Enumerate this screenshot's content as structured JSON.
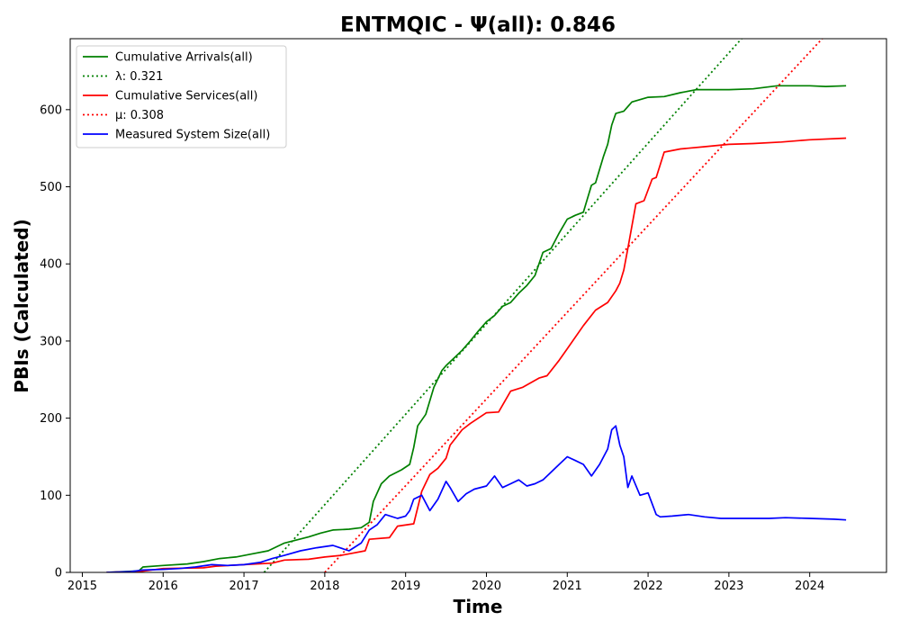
{
  "chart_data": {
    "type": "line",
    "title": "ENTMQIC -  Ψ(all): 0.846",
    "xlabel": "Time",
    "ylabel": "PBIs (Calculated)",
    "xlim": [
      2014.85,
      2024.95
    ],
    "ylim": [
      0,
      692
    ],
    "x_ticks": [
      2015,
      2016,
      2017,
      2018,
      2019,
      2020,
      2021,
      2022,
      2023,
      2024
    ],
    "y_ticks": [
      0,
      100,
      200,
      300,
      400,
      500,
      600
    ],
    "grid": false,
    "legend_position": "top-left",
    "series": [
      {
        "name": "Cumulative Arrivals(all)",
        "color": "#008000",
        "style": "solid",
        "x": [
          2015.3,
          2015.7,
          2015.75,
          2016.0,
          2016.3,
          2016.5,
          2016.7,
          2016.9,
          2017.1,
          2017.3,
          2017.5,
          2017.8,
          2017.95,
          2018.1,
          2018.3,
          2018.45,
          2018.55,
          2018.6,
          2018.7,
          2018.8,
          2018.95,
          2019.05,
          2019.1,
          2019.15,
          2019.25,
          2019.35,
          2019.45,
          2019.5,
          2019.6,
          2019.7,
          2019.8,
          2019.9,
          2020.0,
          2020.1,
          2020.2,
          2020.3,
          2020.4,
          2020.5,
          2020.6,
          2020.7,
          2020.8,
          2020.9,
          2021.0,
          2021.1,
          2021.2,
          2021.3,
          2021.35,
          2021.45,
          2021.5,
          2021.55,
          2021.6,
          2021.7,
          2021.8,
          2022.0,
          2022.2,
          2022.4,
          2022.6,
          2022.8,
          2023.0,
          2023.3,
          2023.6,
          2023.8,
          2024.0,
          2024.2,
          2024.45
        ],
        "values": [
          0,
          2,
          7,
          9,
          11,
          14,
          18,
          20,
          24,
          28,
          38,
          46,
          51,
          55,
          56,
          58,
          65,
          92,
          115,
          125,
          133,
          140,
          162,
          190,
          205,
          240,
          262,
          268,
          278,
          288,
          300,
          313,
          325,
          333,
          345,
          350,
          362,
          372,
          385,
          415,
          420,
          440,
          458,
          463,
          467,
          502,
          505,
          540,
          555,
          580,
          595,
          598,
          610,
          616,
          617,
          622,
          626,
          626,
          626,
          627,
          631,
          631,
          631,
          630,
          631
        ]
      },
      {
        "name": "λ: 0.321",
        "color": "#008000",
        "style": "dotted",
        "x": [
          2017.25,
          2023.2
        ],
        "values": [
          0,
          697
        ]
      },
      {
        "name": "Cumulative Services(all)",
        "color": "#ff0000",
        "style": "solid",
        "x": [
          2015.3,
          2015.7,
          2016.0,
          2016.5,
          2016.65,
          2017.0,
          2017.35,
          2017.5,
          2017.8,
          2018.0,
          2018.2,
          2018.5,
          2018.55,
          2018.8,
          2018.9,
          2019.1,
          2019.2,
          2019.3,
          2019.4,
          2019.5,
          2019.55,
          2019.7,
          2019.8,
          2019.9,
          2020.0,
          2020.15,
          2020.3,
          2020.45,
          2020.65,
          2020.75,
          2020.9,
          2021.0,
          2021.2,
          2021.35,
          2021.5,
          2021.6,
          2021.65,
          2021.7,
          2021.75,
          2021.85,
          2021.95,
          2022.05,
          2022.1,
          2022.2,
          2022.4,
          2022.7,
          2023.0,
          2023.3,
          2023.65,
          2024.0,
          2024.45
        ],
        "values": [
          0,
          1,
          5,
          6,
          8,
          10,
          12,
          16,
          17,
          20,
          22,
          28,
          43,
          45,
          60,
          63,
          105,
          127,
          135,
          148,
          165,
          185,
          193,
          200,
          207,
          208,
          235,
          240,
          252,
          255,
          275,
          290,
          320,
          340,
          350,
          365,
          375,
          392,
          420,
          478,
          482,
          510,
          512,
          545,
          549,
          552,
          555,
          556,
          558,
          561,
          563
        ]
      },
      {
        "name": "μ: 0.308",
        "color": "#ff0000",
        "style": "dotted",
        "x": [
          2018.0,
          2024.2
        ],
        "values": [
          0,
          697
        ]
      },
      {
        "name": "Measured System Size(all)",
        "color": "#0000ff",
        "style": "solid",
        "x": [
          2015.3,
          2015.6,
          2015.75,
          2016.0,
          2016.2,
          2016.4,
          2016.6,
          2016.8,
          2017.0,
          2017.2,
          2017.35,
          2017.5,
          2017.7,
          2017.9,
          2018.1,
          2018.3,
          2018.45,
          2018.55,
          2018.65,
          2018.75,
          2018.9,
          2019.0,
          2019.05,
          2019.1,
          2019.2,
          2019.3,
          2019.4,
          2019.5,
          2019.55,
          2019.65,
          2019.75,
          2019.85,
          2020.0,
          2020.1,
          2020.2,
          2020.3,
          2020.4,
          2020.5,
          2020.6,
          2020.7,
          2020.8,
          2020.9,
          2021.0,
          2021.1,
          2021.2,
          2021.3,
          2021.4,
          2021.5,
          2021.55,
          2021.6,
          2021.65,
          2021.7,
          2021.75,
          2021.8,
          2021.9,
          2022.0,
          2022.1,
          2022.15,
          2022.3,
          2022.5,
          2022.7,
          2022.9,
          2023.2,
          2023.5,
          2023.7,
          2024.0,
          2024.3,
          2024.45
        ],
        "values": [
          0,
          1,
          3,
          4,
          5,
          7,
          10,
          9,
          10,
          13,
          18,
          22,
          28,
          32,
          35,
          28,
          38,
          55,
          62,
          75,
          70,
          73,
          80,
          95,
          100,
          80,
          95,
          118,
          110,
          92,
          102,
          108,
          112,
          125,
          110,
          115,
          120,
          112,
          115,
          120,
          130,
          140,
          150,
          145,
          140,
          125,
          140,
          160,
          185,
          190,
          165,
          150,
          110,
          125,
          100,
          103,
          75,
          72,
          73,
          75,
          72,
          70,
          70,
          70,
          71,
          70,
          69,
          68
        ]
      }
    ]
  }
}
